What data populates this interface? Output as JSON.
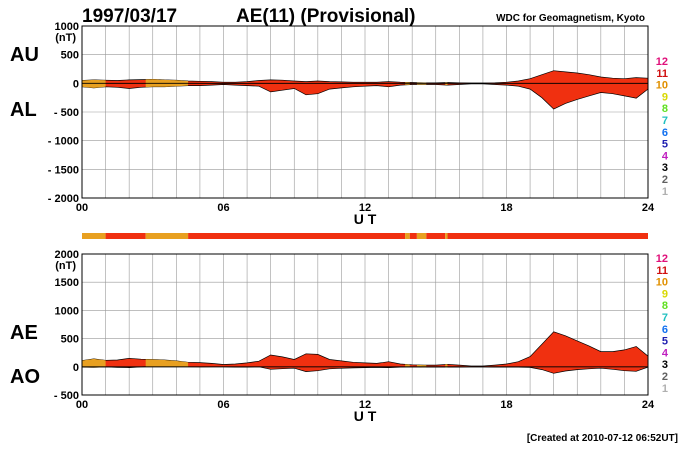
{
  "header": {
    "date": "1997/03/17",
    "title": "AE(11) (Provisional)",
    "source": "WDC for Geomagnetism, Kyoto"
  },
  "footer": {
    "created": "[Created at 2010-07-12 06:52UT]"
  },
  "colors": {
    "main_fill": "#f03010",
    "alt_fill": "#e8a020",
    "grid": "#999999",
    "station_count_colors": {
      "12": "#e0107a",
      "11": "#d01010",
      "10": "#e09000",
      "9": "#d8d800",
      "8": "#60e020",
      "7": "#20c0c0",
      "6": "#1070f0",
      "5": "#2020b0",
      "4": "#c020c0",
      "3": "#000000",
      "2": "#606060",
      "1": "#b0b0b0"
    }
  },
  "station_count_legend": [
    "12",
    "11",
    "10",
    "9",
    "8",
    "7",
    "6",
    "5",
    "4",
    "3",
    "2",
    "1"
  ],
  "chart_data": [
    {
      "id": "au_al",
      "type": "area",
      "unit_label": "(nT)",
      "left_labels": [
        "AU",
        "AL"
      ],
      "xlabel": "U T",
      "xlim": [
        0,
        24
      ],
      "xticks": [
        "00",
        "06",
        "12",
        "18",
        "24"
      ],
      "ylim": [
        -2000,
        1000
      ],
      "yticks": [
        "1000",
        "500",
        "0",
        "- 500",
        "- 1000",
        "- 1500",
        "- 2000"
      ],
      "grid": true,
      "x": [
        0,
        0.5,
        1,
        1.5,
        2,
        2.5,
        3,
        3.5,
        4,
        4.5,
        5,
        5.5,
        6,
        6.5,
        7,
        7.5,
        8,
        8.5,
        9,
        9.5,
        10,
        10.5,
        11,
        11.5,
        12,
        12.5,
        13,
        13.5,
        14,
        14.5,
        15,
        15.5,
        16,
        16.5,
        17,
        17.5,
        18,
        18.5,
        19,
        19.5,
        20,
        20.5,
        21,
        21.5,
        22,
        22.5,
        23,
        23.5,
        24
      ],
      "series": [
        {
          "name": "AU",
          "values": [
            50,
            60,
            55,
            50,
            60,
            65,
            70,
            60,
            55,
            40,
            35,
            30,
            20,
            20,
            30,
            50,
            60,
            55,
            40,
            30,
            40,
            30,
            25,
            20,
            20,
            20,
            30,
            20,
            15,
            10,
            10,
            15,
            10,
            5,
            5,
            10,
            20,
            40,
            80,
            150,
            220,
            200,
            180,
            150,
            110,
            90,
            80,
            100,
            90
          ]
        },
        {
          "name": "AL",
          "values": [
            -60,
            -80,
            -60,
            -70,
            -90,
            -70,
            -60,
            -60,
            -50,
            -40,
            -40,
            -30,
            -20,
            -30,
            -40,
            -50,
            -150,
            -120,
            -90,
            -200,
            -180,
            -100,
            -80,
            -60,
            -50,
            -40,
            -60,
            -30,
            -20,
            -20,
            -20,
            -30,
            -20,
            -10,
            -10,
            -20,
            -30,
            -50,
            -100,
            -250,
            -450,
            -350,
            -280,
            -220,
            -160,
            -180,
            -220,
            -260,
            -100
          ]
        }
      ]
    },
    {
      "id": "ae_ao",
      "type": "area",
      "unit_label": "(nT)",
      "left_labels": [
        "AE",
        "AO"
      ],
      "xlabel": "U T",
      "xlim": [
        0,
        24
      ],
      "xticks": [
        "00",
        "06",
        "12",
        "18",
        "24"
      ],
      "ylim": [
        -500,
        2000
      ],
      "yticks": [
        "2000",
        "1500",
        "1000",
        "500",
        "0",
        "- 500"
      ],
      "grid": true,
      "x": [
        0,
        0.5,
        1,
        1.5,
        2,
        2.5,
        3,
        3.5,
        4,
        4.5,
        5,
        5.5,
        6,
        6.5,
        7,
        7.5,
        8,
        8.5,
        9,
        9.5,
        10,
        10.5,
        11,
        11.5,
        12,
        12.5,
        13,
        13.5,
        14,
        14.5,
        15,
        15.5,
        16,
        16.5,
        17,
        17.5,
        18,
        18.5,
        19,
        19.5,
        20,
        20.5,
        21,
        21.5,
        22,
        22.5,
        23,
        23.5,
        24
      ],
      "series": [
        {
          "name": "AE",
          "values": [
            110,
            140,
            115,
            120,
            150,
            135,
            130,
            120,
            105,
            80,
            75,
            60,
            40,
            50,
            70,
            100,
            210,
            175,
            130,
            230,
            220,
            130,
            105,
            80,
            70,
            60,
            90,
            50,
            35,
            30,
            30,
            45,
            30,
            15,
            15,
            30,
            50,
            90,
            180,
            400,
            620,
            550,
            460,
            370,
            270,
            270,
            300,
            360,
            190
          ]
        },
        {
          "name": "AO",
          "values": [
            -5,
            -10,
            -2,
            -10,
            -15,
            -2,
            5,
            0,
            3,
            0,
            -2,
            0,
            0,
            -5,
            -5,
            0,
            -45,
            -33,
            -25,
            -85,
            -70,
            -35,
            -27,
            -20,
            -15,
            -10,
            -15,
            -5,
            -2,
            -5,
            -5,
            -7,
            -5,
            -2,
            -2,
            -5,
            -5,
            -5,
            -10,
            -50,
            -115,
            -75,
            -50,
            -35,
            -25,
            -45,
            -70,
            -80,
            -5
          ]
        }
      ]
    }
  ],
  "station_bar": {
    "xlim": [
      0,
      24
    ],
    "segments": [
      {
        "start": 0,
        "end": 1.0,
        "count": "10"
      },
      {
        "start": 1.0,
        "end": 2.7,
        "count": "11"
      },
      {
        "start": 2.7,
        "end": 4.5,
        "count": "10"
      },
      {
        "start": 4.5,
        "end": 13.7,
        "count": "11"
      },
      {
        "start": 13.7,
        "end": 13.9,
        "count": "10"
      },
      {
        "start": 13.9,
        "end": 14.2,
        "count": "11"
      },
      {
        "start": 14.2,
        "end": 14.6,
        "count": "10"
      },
      {
        "start": 14.6,
        "end": 15.4,
        "count": "11"
      },
      {
        "start": 15.4,
        "end": 15.5,
        "count": "10"
      },
      {
        "start": 15.5,
        "end": 24,
        "count": "11"
      }
    ]
  }
}
